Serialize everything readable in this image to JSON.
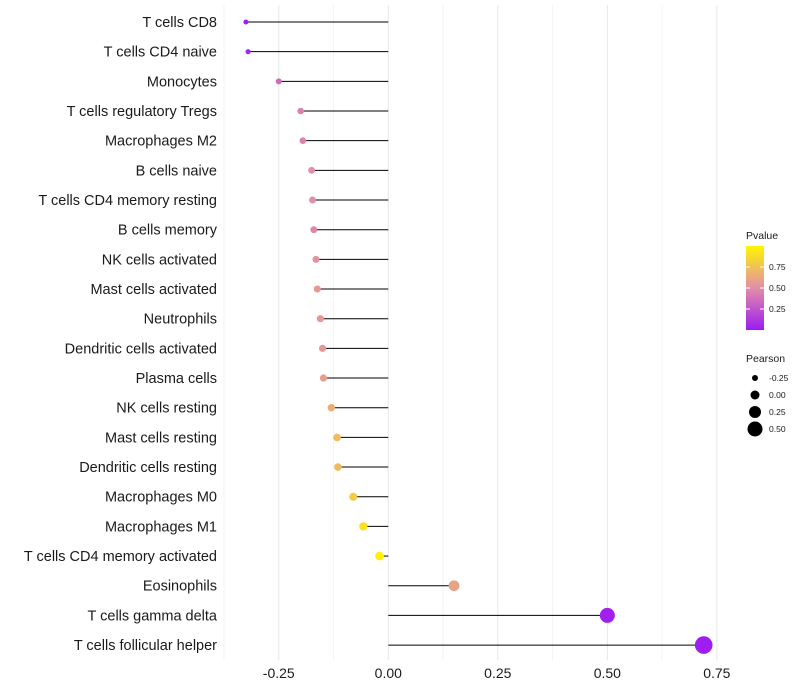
{
  "chart_data": {
    "type": "lollipop",
    "categories": [
      "T cells CD8",
      "T cells CD4 naive",
      "Monocytes",
      "T cells regulatory  Tregs",
      "Macrophages M2",
      "B cells naive",
      "T cells CD4 memory resting",
      "B cells memory",
      "NK cells activated",
      "Mast cells activated",
      "Neutrophils",
      "Dendritic cells activated",
      "Plasma cells",
      "NK cells resting",
      "Mast cells resting",
      "Dendritic cells resting",
      "Macrophages M0",
      "Macrophages M1",
      "T cells CD4 memory activated",
      "Eosinophils",
      "T cells gamma delta",
      "T cells follicular helper"
    ],
    "values": [
      -0.325,
      -0.32,
      -0.25,
      -0.2,
      -0.195,
      -0.175,
      -0.173,
      -0.17,
      -0.165,
      -0.162,
      -0.155,
      -0.15,
      -0.148,
      -0.13,
      -0.117,
      -0.115,
      -0.08,
      -0.057,
      -0.02,
      0.15,
      0.5,
      0.72
    ],
    "pvalues": [
      0.02,
      0.05,
      0.35,
      0.45,
      0.45,
      0.5,
      0.5,
      0.47,
      0.52,
      0.55,
      0.55,
      0.55,
      0.58,
      0.65,
      0.72,
      0.72,
      0.8,
      0.9,
      0.98,
      0.6,
      0.02,
      0.01
    ],
    "xlim": [
      -0.375,
      0.78
    ],
    "x_ticks": [
      -0.25,
      0.0,
      0.25,
      0.5,
      0.75
    ],
    "x_tick_labels": [
      "-0.25",
      "0.00",
      "0.25",
      "0.50",
      "0.75"
    ],
    "baseline": 0.0,
    "grid": true,
    "legend_position": "right",
    "legends": {
      "color": {
        "title": "Pvalue",
        "ticks": [
          0.25,
          0.5,
          0.75
        ],
        "tick_labels": [
          "0.25",
          "0.50",
          "0.75"
        ],
        "range": [
          0.0,
          1.0
        ],
        "low_color": "#9E1BF2",
        "mid_color": "#E28EA8",
        "high_color": "#FFF500"
      },
      "size": {
        "title": "Pearson",
        "values": [
          -0.25,
          0.0,
          0.25,
          0.5
        ],
        "labels": [
          "-0.25",
          "0.00",
          "0.25",
          "0.50"
        ]
      }
    }
  }
}
